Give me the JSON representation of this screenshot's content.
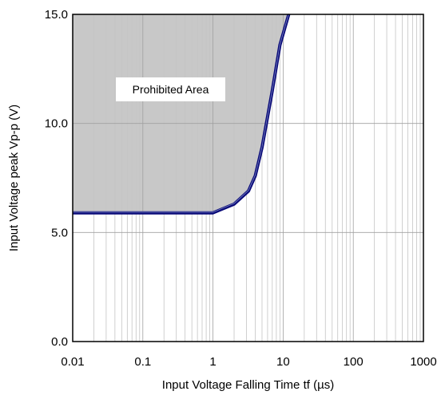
{
  "chart_data": {
    "type": "line",
    "xlabel": "Input Voltage Falling Time tf (µs)",
    "ylabel": "Input Voltage peak Vp-p (V)",
    "x_scale": "log",
    "xlim": [
      0.01,
      1000
    ],
    "ylim": [
      0,
      15
    ],
    "x_ticks": [
      "0.01",
      "0.1",
      "1",
      "10",
      "100",
      "1000"
    ],
    "y_ticks": [
      "0.0",
      "5.0",
      "10.0",
      "15.0"
    ],
    "grid": true,
    "series": [
      {
        "name": "",
        "color": "#0a0a78",
        "x": [
          0.01,
          1,
          2,
          3.2,
          4,
          5,
          7,
          9,
          12
        ],
        "y": [
          5.9,
          5.9,
          6.3,
          6.9,
          7.6,
          8.9,
          11.5,
          13.6,
          15.0
        ]
      }
    ],
    "annotations": [
      {
        "text": "Prohibited Area"
      }
    ],
    "shaded_region_color": "#c8c8c8"
  }
}
